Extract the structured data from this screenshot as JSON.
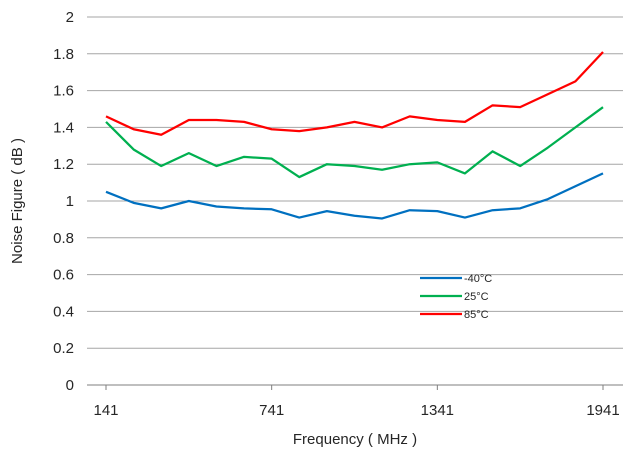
{
  "chart_data": {
    "type": "line",
    "title": "",
    "xlabel": "Frequency ( MHz )",
    "ylabel": "Noise Figure ( dB )",
    "xlim": [
      141,
      1941
    ],
    "ylim": [
      0,
      2
    ],
    "x_ticks": [
      "141",
      "741",
      "1341",
      "1941"
    ],
    "x_tick_values": [
      141,
      741,
      1341,
      1941
    ],
    "y_ticks": [
      "0",
      "0.2",
      "0.4",
      "0.6",
      "0.8",
      "1",
      "1.2",
      "1.4",
      "1.6",
      "1.8",
      "2"
    ],
    "y_tick_values": [
      0,
      0.2,
      0.4,
      0.6,
      0.8,
      1.0,
      1.2,
      1.4,
      1.6,
      1.8,
      2.0
    ],
    "grid": "horizontal",
    "legend_position": "center-right",
    "x": [
      141,
      241,
      341,
      441,
      541,
      641,
      741,
      841,
      941,
      1041,
      1141,
      1241,
      1341,
      1441,
      1541,
      1641,
      1741,
      1841,
      1941
    ],
    "series": [
      {
        "name": "-40°C",
        "color": "#0070c0",
        "values": [
          1.05,
          0.99,
          0.96,
          1.0,
          0.97,
          0.96,
          0.955,
          0.91,
          0.945,
          0.92,
          0.905,
          0.95,
          0.945,
          0.91,
          0.95,
          0.96,
          1.01,
          1.08,
          1.15
        ]
      },
      {
        "name": "25°C",
        "color": "#00b050",
        "values": [
          1.43,
          1.28,
          1.19,
          1.26,
          1.19,
          1.24,
          1.23,
          1.13,
          1.2,
          1.19,
          1.17,
          1.2,
          1.21,
          1.15,
          1.27,
          1.19,
          1.29,
          1.4,
          1.51
        ]
      },
      {
        "name": "85°C",
        "color": "#ff0000",
        "values": [
          1.46,
          1.39,
          1.36,
          1.44,
          1.44,
          1.43,
          1.39,
          1.38,
          1.4,
          1.43,
          1.4,
          1.46,
          1.44,
          1.43,
          1.52,
          1.51,
          1.58,
          1.65,
          1.81
        ]
      }
    ]
  }
}
